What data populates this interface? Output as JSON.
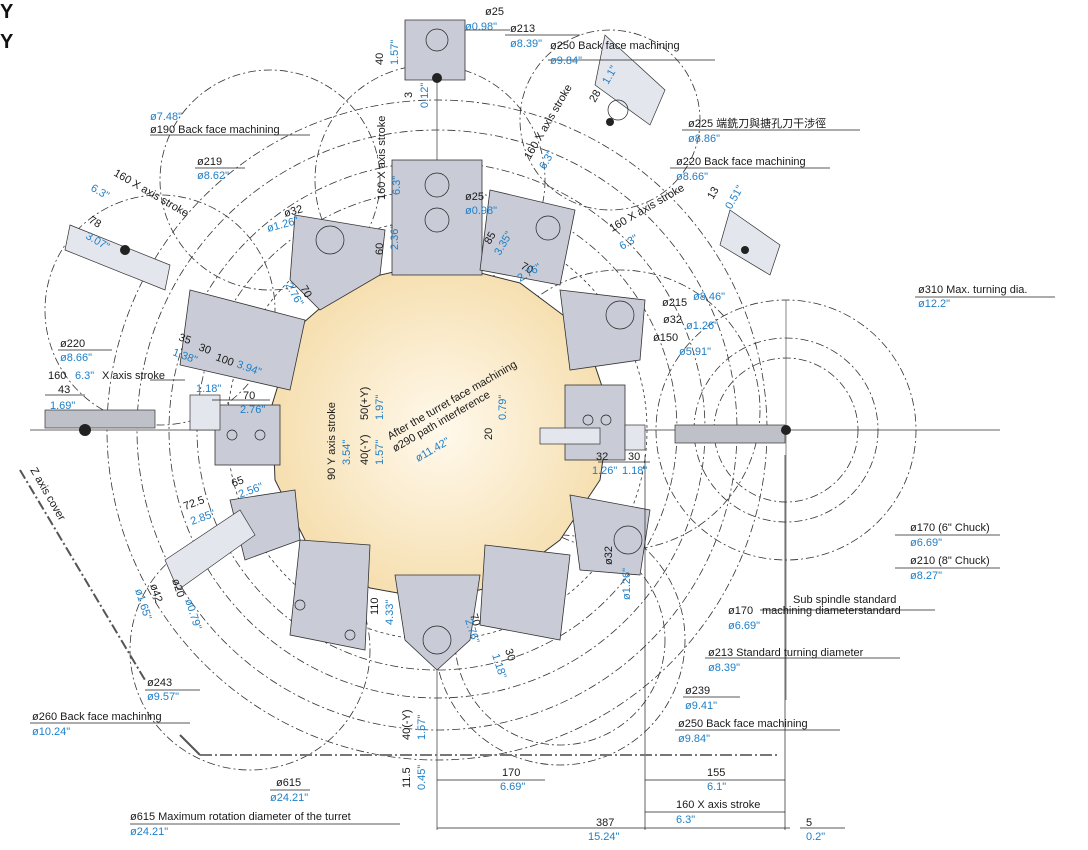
{
  "corner": {
    "y1": "Y",
    "y2": "Y"
  },
  "labels": {
    "d25_top_k": "ø25",
    "d25_top_b": "ø0.98\"",
    "d213_top_k": "ø213",
    "d213_top_b": "ø8.39\"",
    "d250_top_k": "ø250  Back face machining",
    "d250_top_b": "ø9.84\"",
    "d190_b": "ø7.48\"",
    "d190_k": "ø190  Back face machining",
    "d225_k": "ø225 端銑刀與搪孔刀干涉徑",
    "d225_b": "ø8.86\"",
    "d220r_k": "ø220  Back face machining",
    "d220r_b": "ø8.66\"",
    "d219_k": "ø219",
    "d219_b": "ø8.62\"",
    "d220l_k": "ø220",
    "d220l_b": "ø8.66\"",
    "d310_k": "ø310  Max. turning dia.",
    "d310_b": "ø12.2\"",
    "d215_k": "ø215",
    "d215_b": "ø8.46\"",
    "d32r_k": "ø32",
    "d32r_b": "ø1.26\"",
    "d150_k": "ø150",
    "d150_b": "ø5.91\"",
    "d290_k1": "After the turret face machining",
    "d290_k2": "ø290  path interference",
    "d290_b": "ø11.42\"",
    "d170c_k": "ø170 (6\" Chuck)",
    "d170c_b": "ø6.69\"",
    "d210c_k": "ø210 (8\" Chuck)",
    "d210c_b": "ø8.27\"",
    "sub1": "Sub spindle standard",
    "sub2_k": "ø170",
    "sub2": "machining diameterstandard",
    "sub2_b": "ø6.69\"",
    "d213s_k": "ø213  Standard turning diameter",
    "d213s_b": "ø8.39\"",
    "d239_k": "ø239",
    "d239_b": "ø9.41\"",
    "d250b_k": "ø250  Back face machining",
    "d250b_b": "ø9.84\"",
    "d243_k": "ø243",
    "d243_b": "ø9.57\"",
    "d260_k": "ø260  Back face machining",
    "d260_b": "ø10.24\"",
    "d615_k": "ø615",
    "d615_b": "ø24.21\"",
    "d615m_k": "ø615  Maximum rotation diameter of the turret",
    "d615m_b": "ø24.21\"",
    "zcover": "Z axis cover",
    "d42_k": "ø42",
    "d42_b": "ø1.65\"",
    "d20_k": "ø20",
    "d20_b": "ø0.79\"",
    "d32b_k": "ø32",
    "d32b_b": "ø1.26\"",
    "d25_mid_k": "ø25",
    "d25_mid_b": "ø0.98\"",
    "d32t_k": "ø32",
    "d32t_b": "ø1.26\"",
    "x160_a_k": "160  X axis stroke",
    "x160_a_b": "6.3\"",
    "x160_b_k": "160  X axis stroke",
    "x160_b_b": "6.3\"",
    "x160_c_k": "160  X axis stroke",
    "x160_c_b": "6.3\"",
    "x160_d_k": "160",
    "x160_d_b": "6.3\"",
    "x160_d_t": "X axis stroke",
    "x160_e_k": "160  X axis stroke",
    "x160_e_b": "6.3\"",
    "x160_f_k": "160  X axis stroke",
    "x160_f_b": "6.3\"",
    "y90_k": "90  Y axis stroke",
    "y90_b": "3.54\"",
    "y40_k": "40(-Y)",
    "y40_b": "1.57\"",
    "y50_k": "50(+Y)",
    "y50_b": "1.97\"",
    "n40_k": "40",
    "n40_b": "1.57\"",
    "n3_k": "3",
    "n3_b": "0.12\"",
    "n28_k": "28",
    "n28_b": "1.1\"",
    "n13_k": "13",
    "n13_b": "0.51\"",
    "n78_k": "78",
    "n78_b": "3.07\"",
    "n60_k": "60",
    "n60_b": "2.36\"",
    "n85_k": "85",
    "n85_b": "3.35\"",
    "n70a_k": "70",
    "n70a_b": "2.76\"",
    "n70b_k": "70",
    "n70b_b": "2.76\"",
    "n70c_k": "70",
    "n70c_b": "2.76\"",
    "n70d_k": "70",
    "n70d_b": "2.76\"",
    "n35_k": "35",
    "n35_b": "1.38\"",
    "n100_k": "100",
    "n100_b": "3.94\"",
    "n30a_k": "30",
    "n30a_b": "1.18\"",
    "n43_k": "43",
    "n43_b": "1.69\"",
    "n20_k": "20",
    "n20_b": "0.79\"",
    "n32_k": "32",
    "n32_b": "1.26\"",
    "n30b_k": "30",
    "n30b_b": "1.18\"",
    "n65_k": "65",
    "n65_b": "2.56\"",
    "n72_k": "72.5",
    "n72_b": "2.85\"",
    "n110_k": "110",
    "n110_b": "4.33\"",
    "n30c_k": "30",
    "n30c_b": "1.18\"",
    "n40y_k": "40(-Y)",
    "n40y_b": "1.57\"",
    "n115_k": "11.5",
    "n115_b": "0.45\"",
    "n170_k": "170",
    "n170_b": "6.69\"",
    "n155_k": "155",
    "n155_b": "6.1\"",
    "n387_k": "387",
    "n387_b": "15.24\"",
    "n5_k": "5",
    "n5_b": "0.2\""
  },
  "colors": {
    "dim_black": "#1a1a1a",
    "dim_blue": "#1f7fc7",
    "turret_fill": "#f8e7c4",
    "tool_fill": "#c9ccd6"
  }
}
